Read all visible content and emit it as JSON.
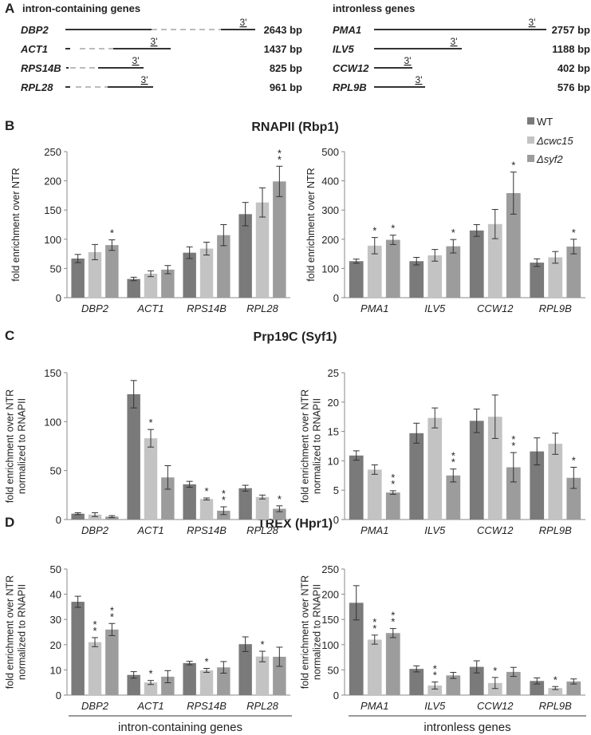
{
  "panel_a": {
    "letter": "A",
    "left_header": "intron-containing genes",
    "right_header": "intronless genes",
    "three_prime_label": "3'",
    "left_genes": [
      {
        "name": "DBP2",
        "size": "2643 bp"
      },
      {
        "name": "ACT1",
        "size": "1437 bp"
      },
      {
        "name": "RPS14B",
        "size": "825 bp"
      },
      {
        "name": "RPL28",
        "size": "961 bp"
      }
    ],
    "right_genes": [
      {
        "name": "PMA1",
        "size": "2757 bp"
      },
      {
        "name": "ILV5",
        "size": "1188 bp"
      },
      {
        "name": "CCW12",
        "size": "402 bp"
      },
      {
        "name": "RPL9B",
        "size": "576 bp"
      }
    ]
  },
  "panels": [
    {
      "letter": "B",
      "title": "RNAPII (Rbp1)"
    },
    {
      "letter": "C",
      "title": "Prp19C (Syf1)"
    },
    {
      "letter": "D",
      "title": "TREX (Hpr1)"
    }
  ],
  "legend": [
    {
      "label": "WT",
      "color": "#7a7a7a"
    },
    {
      "label": "Δcwc15",
      "color": "#c3c3c3"
    },
    {
      "label": "Δsyf2",
      "color": "#9c9c9c"
    }
  ],
  "bottom_labels": {
    "left": "intron-containing genes",
    "right": "intronless genes"
  },
  "chart_data": [
    {
      "type": "bar",
      "panel": "B",
      "ylabel": [
        "fold enrichment over NTR"
      ],
      "ylim": [
        0,
        250
      ],
      "yticks": [
        0,
        50,
        100,
        150,
        200,
        250
      ],
      "categories": [
        "DBP2",
        "ACT1",
        "RPS14B",
        "RPL28"
      ],
      "series": [
        {
          "name": "WT",
          "values": [
            67,
            32,
            77,
            143
          ],
          "errors": [
            7,
            3,
            10,
            20
          ]
        },
        {
          "name": "Δcwc15",
          "values": [
            78,
            41,
            84,
            163
          ],
          "errors": [
            13,
            5,
            11,
            25
          ]
        },
        {
          "name": "Δsyf2",
          "values": [
            90,
            48,
            107,
            199
          ],
          "errors": [
            9,
            7,
            18,
            26
          ]
        }
      ],
      "significance": [
        [
          "",
          "",
          "*"
        ],
        [
          "",
          "",
          ""
        ],
        [
          "",
          "",
          ""
        ],
        [
          "",
          "",
          "**"
        ]
      ]
    },
    {
      "type": "bar",
      "panel": "B",
      "ylabel": [
        "fold enrichment over NTR"
      ],
      "ylim": [
        0,
        500
      ],
      "yticks": [
        0,
        100,
        200,
        300,
        400,
        500
      ],
      "categories": [
        "PMA1",
        "ILV5",
        "CCW12",
        "RPL9B"
      ],
      "series": [
        {
          "name": "WT",
          "values": [
            125,
            125,
            230,
            120
          ],
          "errors": [
            7,
            13,
            20,
            13
          ]
        },
        {
          "name": "Δcwc15",
          "values": [
            178,
            145,
            252,
            138
          ],
          "errors": [
            28,
            20,
            50,
            20
          ]
        },
        {
          "name": "Δsyf2",
          "values": [
            198,
            176,
            358,
            175
          ],
          "errors": [
            16,
            23,
            72,
            25
          ]
        }
      ],
      "significance": [
        [
          "",
          "*",
          "*"
        ],
        [
          "",
          "",
          "*"
        ],
        [
          "",
          "",
          "*"
        ],
        [
          "",
          "",
          "*"
        ]
      ]
    },
    {
      "type": "bar",
      "panel": "C",
      "ylabel": [
        "fold enrichment over NTR",
        "normalized to RNAPII"
      ],
      "ylim": [
        0,
        150
      ],
      "yticks": [
        0,
        50,
        100,
        150
      ],
      "categories": [
        "DBP2",
        "ACT1",
        "RPS14B",
        "RPL28"
      ],
      "series": [
        {
          "name": "WT",
          "values": [
            6,
            128,
            36,
            32
          ],
          "errors": [
            1,
            14,
            3,
            3
          ]
        },
        {
          "name": "Δcwc15",
          "values": [
            5,
            83,
            21,
            23
          ],
          "errors": [
            2,
            9,
            1,
            2
          ]
        },
        {
          "name": "Δsyf2",
          "values": [
            3,
            43,
            9,
            11
          ],
          "errors": [
            1,
            12,
            4,
            3
          ]
        }
      ],
      "significance": [
        [
          "",
          "",
          ""
        ],
        [
          "",
          "*",
          ""
        ],
        [
          "",
          "*",
          "**"
        ],
        [
          "",
          "",
          "*"
        ]
      ]
    },
    {
      "type": "bar",
      "panel": "C",
      "ylabel": [
        "fold enrichment over NTR",
        "normalized to RNAPII"
      ],
      "ylim": [
        0,
        25
      ],
      "yticks": [
        0,
        5,
        10,
        15,
        20,
        25
      ],
      "categories": [
        "PMA1",
        "ILV5",
        "CCW12",
        "RPL9B"
      ],
      "series": [
        {
          "name": "WT",
          "values": [
            10.9,
            14.7,
            16.8,
            11.6
          ],
          "errors": [
            0.8,
            1.7,
            2,
            2.3
          ]
        },
        {
          "name": "Δcwc15",
          "values": [
            8.5,
            17.3,
            17.5,
            12.9
          ],
          "errors": [
            0.8,
            1.7,
            3.7,
            1.8
          ]
        },
        {
          "name": "Δsyf2",
          "values": [
            4.6,
            7.5,
            8.9,
            7.1
          ],
          "errors": [
            0.3,
            1.1,
            2.5,
            1.8
          ]
        }
      ],
      "significance": [
        [
          "",
          "",
          "**"
        ],
        [
          "",
          "",
          "**"
        ],
        [
          "",
          "",
          "**"
        ],
        [
          "",
          "",
          "*"
        ]
      ]
    },
    {
      "type": "bar",
      "panel": "D",
      "ylabel": [
        "fold enrichment over NTR",
        "normalized to RNAPII"
      ],
      "ylim": [
        0,
        50
      ],
      "yticks": [
        0,
        10,
        20,
        30,
        40,
        50
      ],
      "categories": [
        "DBP2",
        "ACT1",
        "RPS14B",
        "RPL28"
      ],
      "series": [
        {
          "name": "WT",
          "values": [
            37,
            8,
            12.7,
            20.2
          ],
          "errors": [
            2.2,
            1.3,
            0.7,
            2.9
          ]
        },
        {
          "name": "Δcwc15",
          "values": [
            21,
            5,
            9.8,
            15.3
          ],
          "errors": [
            1.8,
            0.8,
            0.8,
            2.1
          ]
        },
        {
          "name": "Δsyf2",
          "values": [
            26,
            7.3,
            11,
            15.2
          ],
          "errors": [
            2.4,
            2.4,
            2.3,
            3.8
          ]
        }
      ],
      "significance": [
        [
          "",
          "**",
          "**"
        ],
        [
          "",
          "*",
          ""
        ],
        [
          "",
          "*",
          ""
        ],
        [
          "",
          "*",
          ""
        ]
      ]
    },
    {
      "type": "bar",
      "panel": "D",
      "ylabel": [
        "fold enrichment over NTR",
        "normalized to RNAPII"
      ],
      "ylim": [
        0,
        250
      ],
      "yticks": [
        0,
        50,
        100,
        150,
        200,
        250
      ],
      "categories": [
        "PMA1",
        "ILV5",
        "CCW12",
        "RPL9B"
      ],
      "series": [
        {
          "name": "WT",
          "values": [
            183,
            52,
            56,
            28
          ],
          "errors": [
            34,
            6,
            12,
            6
          ]
        },
        {
          "name": "Δcwc15",
          "values": [
            110,
            19,
            24,
            14
          ],
          "errors": [
            9,
            7,
            11,
            3
          ]
        },
        {
          "name": "Δsyf2",
          "values": [
            123,
            39,
            46,
            27
          ],
          "errors": [
            9,
            6,
            9,
            5
          ]
        }
      ],
      "significance": [
        [
          "",
          "**",
          "**"
        ],
        [
          "",
          "**",
          ""
        ],
        [
          "",
          "*",
          ""
        ],
        [
          "",
          "*",
          ""
        ]
      ]
    }
  ]
}
